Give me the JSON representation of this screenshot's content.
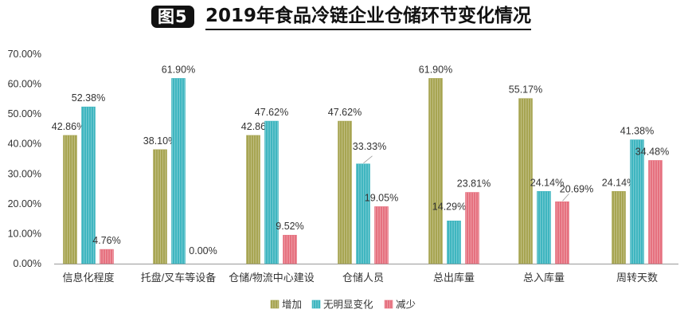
{
  "header": {
    "badge": "图5",
    "title": "2019年食品冷链企业仓储环节变化情况"
  },
  "chart_data": {
    "type": "bar",
    "title": "2019年食品冷链企业仓储环节变化情况",
    "categories": [
      "信息化程度",
      "托盘/叉车等设备",
      "仓储/物流中心建设",
      "仓储人员",
      "总出库量",
      "总入库量",
      "周转天数"
    ],
    "series": [
      {
        "name": "增加",
        "color": "#a7a552",
        "values": [
          42.86,
          38.1,
          42.86,
          47.62,
          61.9,
          55.17,
          24.14
        ]
      },
      {
        "name": "无明显变化",
        "color": "#3fb6c0",
        "values": [
          52.38,
          61.9,
          47.62,
          33.33,
          14.29,
          24.14,
          41.38
        ]
      },
      {
        "name": "减少",
        "color": "#e6717f",
        "values": [
          4.76,
          0.0,
          9.52,
          19.05,
          23.81,
          20.69,
          34.48
        ]
      }
    ],
    "data_labels": [
      [
        "42.86%",
        "52.38%",
        "4.76%"
      ],
      [
        "38.10%",
        "61.90%",
        "0.00%"
      ],
      [
        "42.86%",
        "47.62%",
        "9.52%"
      ],
      [
        "47.62%",
        "33.33%",
        "19.05%"
      ],
      [
        "61.90%",
        "14.29%",
        "23.81%"
      ],
      [
        "55.17%",
        "24.14%",
        "20.69%"
      ],
      [
        "24.14%",
        "41.38%",
        "34.48%"
      ]
    ],
    "y_ticks": [
      "0.00%",
      "10.00%",
      "20.00%",
      "30.00%",
      "40.00%",
      "50.00%",
      "60.00%",
      "70.00%"
    ],
    "ylim": [
      0,
      70
    ],
    "xlabel": "",
    "ylabel": "",
    "grid": false,
    "legend_position": "bottom-center"
  }
}
